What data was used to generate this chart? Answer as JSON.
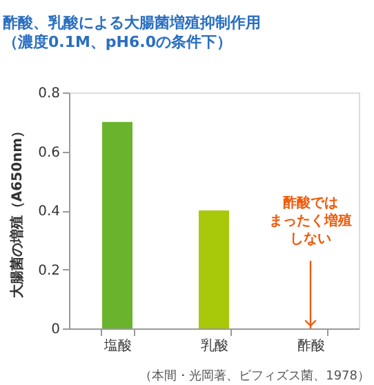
{
  "chart_data": {
    "type": "bar",
    "title": "酢酸、乳酸による大腸菌増殖抑制作用",
    "subtitle": "（濃度0.1M、pH6.0の条件下）",
    "ylabel": "大腸菌の増殖（A650nm）",
    "categories": [
      "塩酸",
      "乳酸",
      "酢酸"
    ],
    "values": [
      0.7,
      0.4,
      0
    ],
    "colors": [
      "#6ab42d",
      "#a8c80a",
      "#a8c80a"
    ],
    "ylim": [
      0,
      0.8
    ],
    "yticks": [
      0,
      0.2,
      0.4,
      0.6,
      0.8
    ],
    "grid": false,
    "annotations": [
      {
        "text": "酢酸ではまったく増殖しない",
        "x": "酢酸",
        "y": 0
      },
      "（本間・光岡著、ビフィズス菌、1978）"
    ]
  }
}
